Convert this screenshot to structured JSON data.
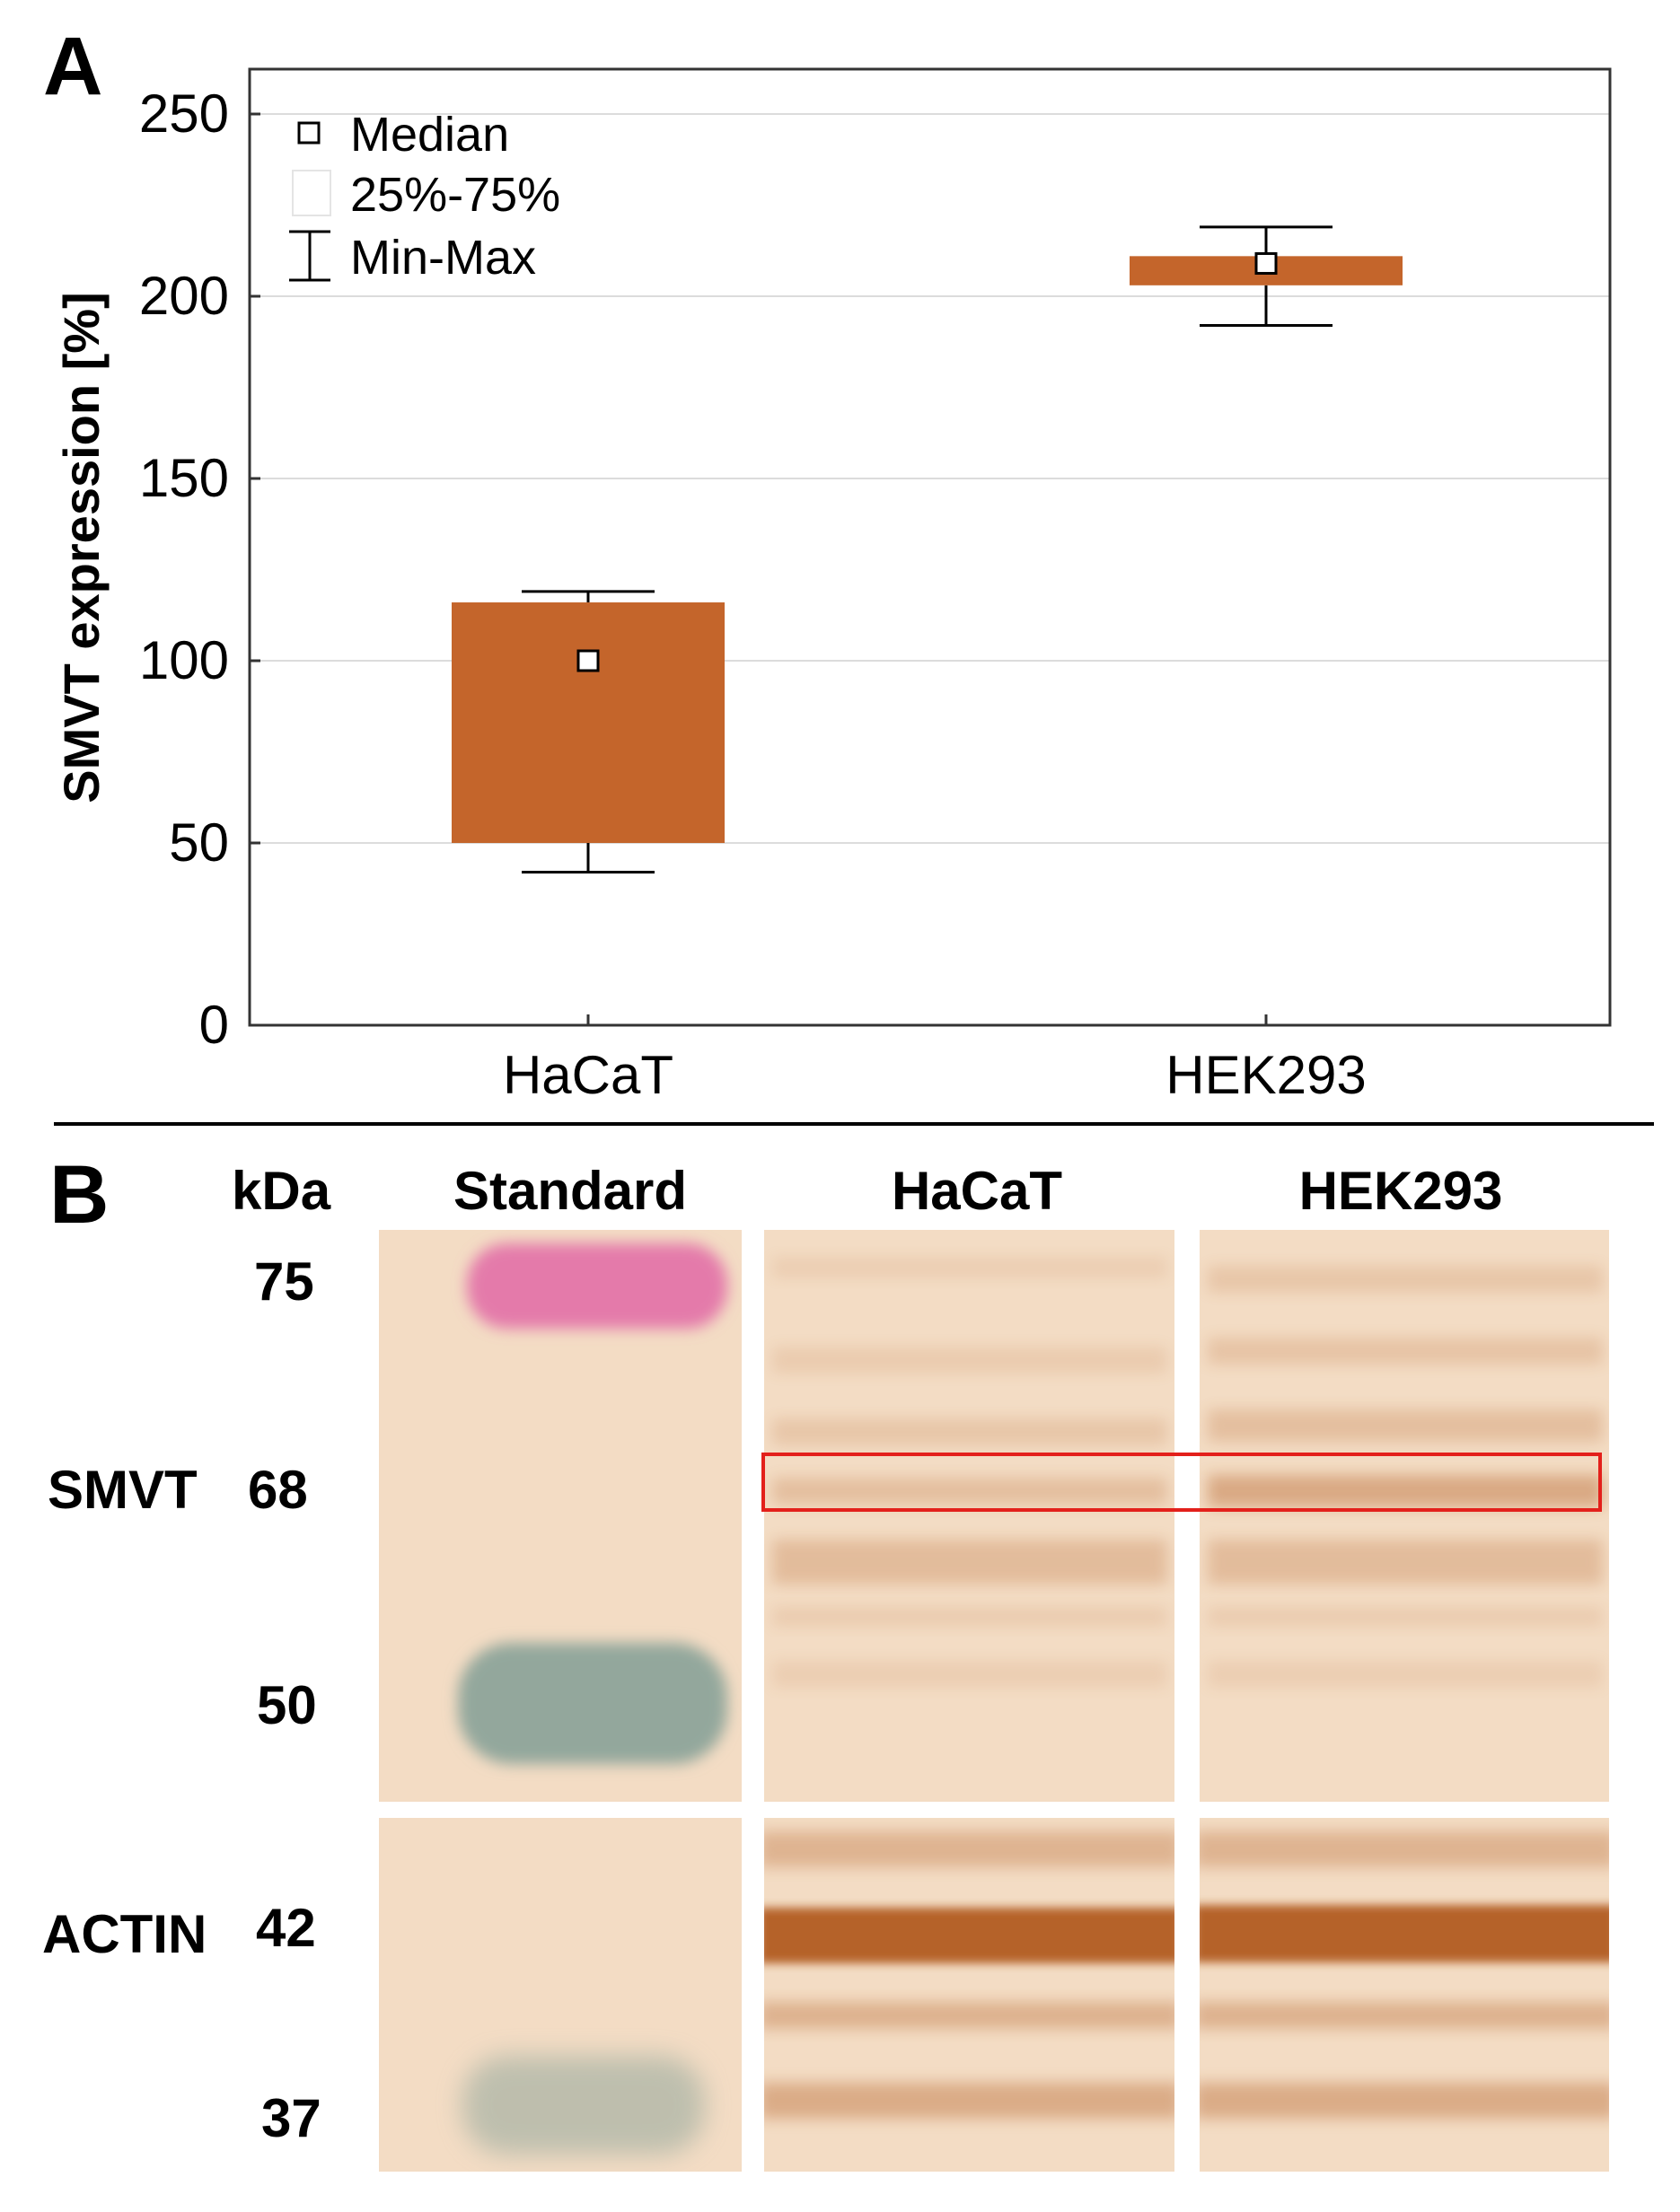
{
  "panel_a_letter": "A",
  "panel_b_letter": "B",
  "chart_data": {
    "type": "box",
    "title": "",
    "xlabel": "",
    "ylabel": "SMVT expression [%]",
    "ylim": [
      0,
      260
    ],
    "yticks": [
      0,
      50,
      100,
      150,
      200,
      250
    ],
    "grid": true,
    "legend_position": "top-left",
    "categories": [
      "HaCaT",
      "HEK293"
    ],
    "series": [
      {
        "name": "HaCaT",
        "median": 100,
        "q1": 50,
        "q3": 116,
        "min": 42,
        "max": 119
      },
      {
        "name": "HEK293",
        "median": 209,
        "q1": 203,
        "q3": 211,
        "min": 192,
        "max": 219
      }
    ],
    "legend": [
      "Median",
      "25%-75%",
      "Min-Max"
    ],
    "box_color": "#c4652b"
  },
  "blot": {
    "kda_label": "kDa",
    "lanes": [
      "Standard",
      "HaCaT",
      "HEK293"
    ],
    "proteins": [
      {
        "name": "SMVT",
        "marker": "68"
      },
      {
        "name": "ACTIN",
        "marker": "42"
      }
    ],
    "ladder_markers": [
      "75",
      "50",
      "37"
    ],
    "highlight_color": "#e3201b",
    "pink_band_color": "#e47aaa",
    "blue_band_color": "#93a79c",
    "membrane_color": "#f3dcc4",
    "band_color": "#b0581e"
  }
}
